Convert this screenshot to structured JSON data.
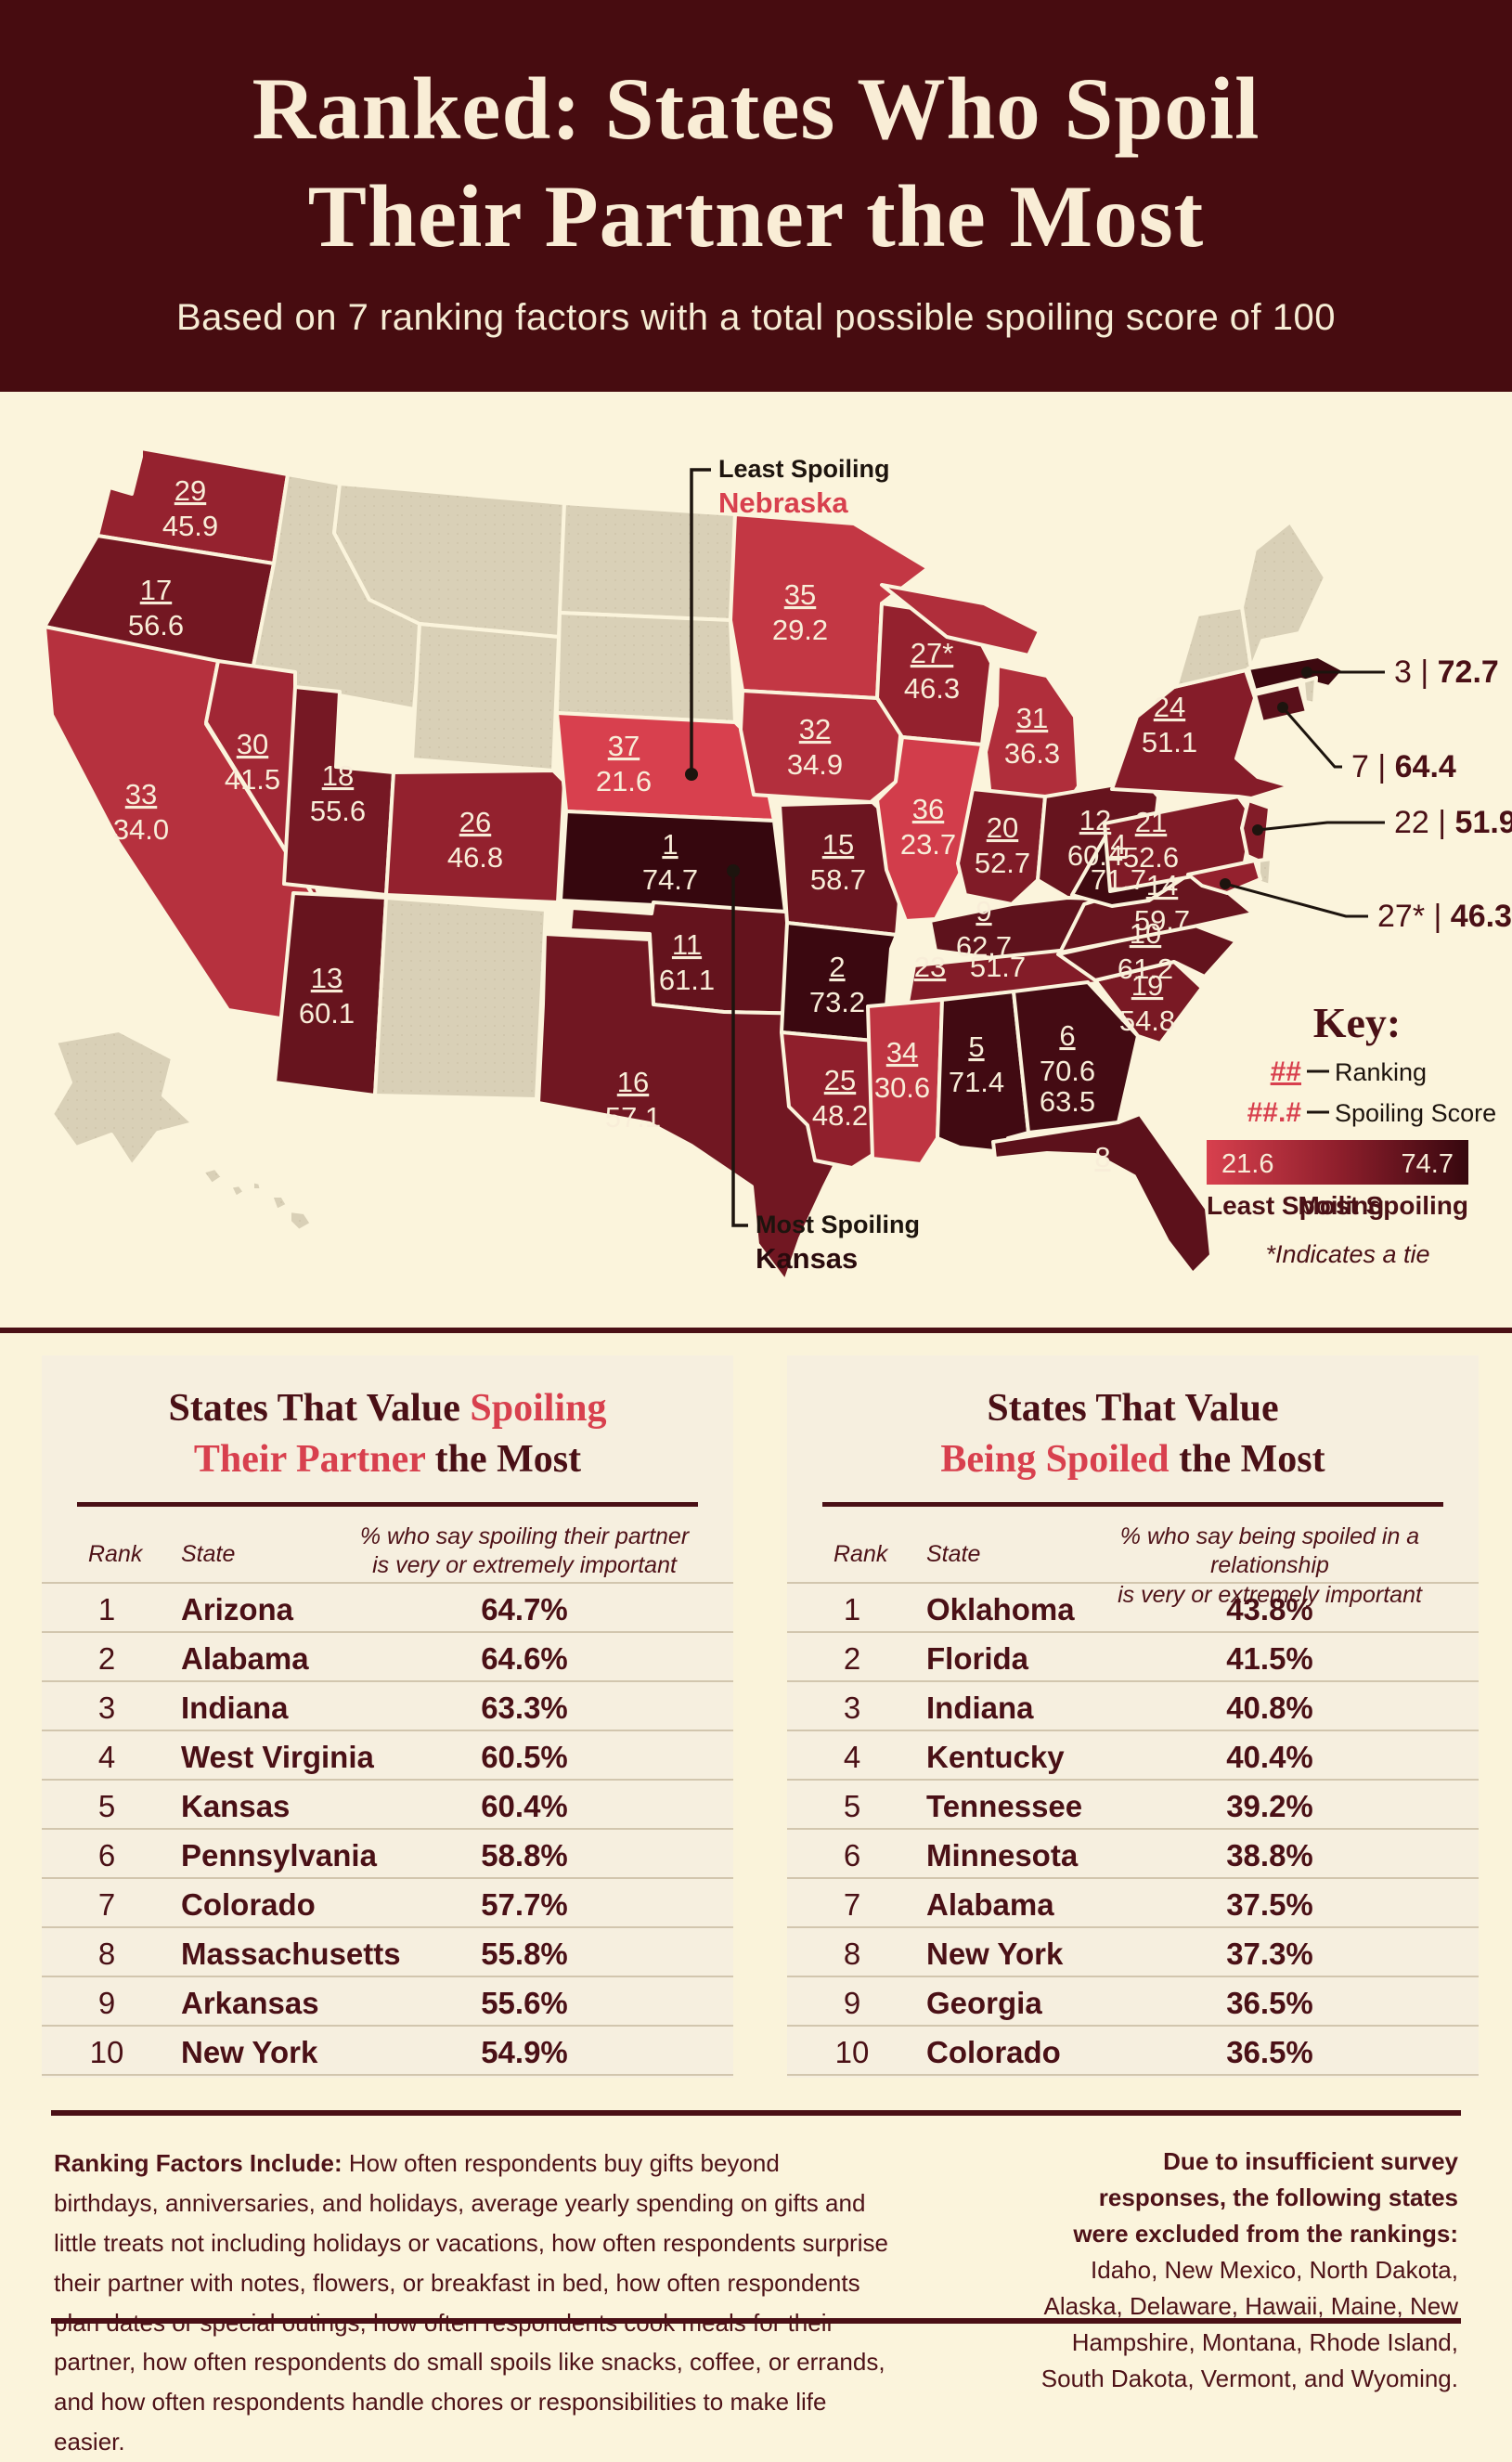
{
  "header": {
    "title_line1": "Ranked: States Who Spoil",
    "title_line2": "Their Partner the Most",
    "subtitle": "Based on 7 ranking factors with a total possible spoiling score of 100"
  },
  "colors": {
    "header_bg": "#470c10",
    "page_bg": "#fbf4dc",
    "panel_bg": "#f6efdf",
    "dark_maroon": "#4a1016",
    "accent_red": "#d8404e",
    "excluded_beige": "#d9d0b7",
    "label_cream": "#f8edd8",
    "scale_min_color": "#d8404e",
    "scale_mid_color": "#8f1f2c",
    "scale_max_color": "#36070e",
    "callout_line": "#1d140e"
  },
  "map": {
    "score_min": 21.6,
    "score_max": 74.7,
    "key": {
      "title": "Key:",
      "ranking_symbol": "##",
      "ranking_label": "Ranking",
      "score_symbol": "##.#",
      "score_label": "Spoiling Score",
      "legend_min": "21.6",
      "legend_max": "74.7",
      "legend_left": "Least Spoiling",
      "legend_right": "Most Spoiling",
      "tie_note": "*Indicates a tie"
    },
    "callouts": {
      "least": {
        "label": "Least Spoiling",
        "state": "Nebraska"
      },
      "most": {
        "label": "Most Spoiling",
        "state": "Kansas"
      },
      "east": [
        {
          "rank": "3",
          "score": "72.7"
        },
        {
          "rank": "7",
          "score": "64.4"
        },
        {
          "rank": "22",
          "score": "51.9"
        },
        {
          "rank": "27*",
          "score": "46.3"
        }
      ]
    },
    "states": [
      {
        "id": "WA",
        "name": "Washington",
        "rank": "29",
        "score": "45.9"
      },
      {
        "id": "OR",
        "name": "Oregon",
        "rank": "17",
        "score": "56.6"
      },
      {
        "id": "ID",
        "name": "Idaho",
        "excluded": true
      },
      {
        "id": "MT",
        "name": "Montana",
        "excluded": true
      },
      {
        "id": "WY",
        "name": "Wyoming",
        "excluded": true
      },
      {
        "id": "CA",
        "name": "California",
        "rank": "33",
        "score": "34.0"
      },
      {
        "id": "NV",
        "name": "Nevada",
        "rank": "30",
        "score": "41.5"
      },
      {
        "id": "UT",
        "name": "Utah",
        "rank": "18",
        "score": "55.6"
      },
      {
        "id": "CO",
        "name": "Colorado",
        "rank": "26",
        "score": "46.8"
      },
      {
        "id": "AZ",
        "name": "Arizona",
        "rank": "13",
        "score": "60.1"
      },
      {
        "id": "NM",
        "name": "New Mexico",
        "excluded": true
      },
      {
        "id": "ND",
        "name": "North Dakota",
        "excluded": true
      },
      {
        "id": "SD",
        "name": "South Dakota",
        "excluded": true
      },
      {
        "id": "NE",
        "name": "Nebraska",
        "rank": "37",
        "score": "21.6"
      },
      {
        "id": "KS",
        "name": "Kansas",
        "rank": "1",
        "score": "74.7"
      },
      {
        "id": "OK",
        "name": "Oklahoma",
        "rank": "11",
        "score": "61.1"
      },
      {
        "id": "TX",
        "name": "Texas",
        "rank": "16",
        "score": "57.1"
      },
      {
        "id": "MN",
        "name": "Minnesota",
        "rank": "35",
        "score": "29.2"
      },
      {
        "id": "IA",
        "name": "Iowa",
        "rank": "32",
        "score": "34.9"
      },
      {
        "id": "MO",
        "name": "Missouri",
        "rank": "15",
        "score": "58.7"
      },
      {
        "id": "AR",
        "name": "Arkansas",
        "rank": "2",
        "score": "73.2"
      },
      {
        "id": "LA",
        "name": "Louisiana",
        "rank": "25",
        "score": "48.2"
      },
      {
        "id": "WI",
        "name": "Wisconsin",
        "rank": "27*",
        "score": "46.3"
      },
      {
        "id": "IL",
        "name": "Illinois",
        "rank": "36",
        "score": "23.7"
      },
      {
        "id": "MI",
        "name": "Michigan",
        "rank": "31",
        "score": "36.3"
      },
      {
        "id": "IN",
        "name": "Indiana",
        "rank": "20",
        "score": "52.7"
      },
      {
        "id": "OH",
        "name": "Ohio",
        "rank": "12",
        "score": "60.4"
      },
      {
        "id": "KY",
        "name": "Kentucky",
        "rank": "9",
        "score": "62.7"
      },
      {
        "id": "TN",
        "name": "Tennessee",
        "rank": "23",
        "score": "51.7"
      },
      {
        "id": "MS",
        "name": "Mississippi",
        "rank": "34",
        "score": "30.6"
      },
      {
        "id": "AL",
        "name": "Alabama",
        "rank": "5",
        "score": "71.4"
      },
      {
        "id": "GA",
        "name": "Georgia",
        "rank": "6",
        "score": "70.6"
      },
      {
        "id": "FL",
        "name": "Florida",
        "rank": "8",
        "score": "63.5"
      },
      {
        "id": "SC",
        "name": "South Carolina",
        "rank": "19",
        "score": "54.8"
      },
      {
        "id": "NC",
        "name": "North Carolina",
        "rank": "10",
        "score": "61.2"
      },
      {
        "id": "VA",
        "name": "Virginia",
        "rank": "14",
        "score": "59.7"
      },
      {
        "id": "WV",
        "name": "West Virginia",
        "rank": "4",
        "score": "71.7"
      },
      {
        "id": "PA",
        "name": "Pennsylvania",
        "rank": "21",
        "score": "52.6"
      },
      {
        "id": "NY",
        "name": "New York",
        "rank": "24",
        "score": "51.1"
      },
      {
        "id": "VTNH",
        "name": "Vermont & New Hampshire",
        "excluded": true
      },
      {
        "id": "ME",
        "name": "Maine",
        "excluded": true
      },
      {
        "id": "MA",
        "name": "Massachusetts",
        "rank": "3",
        "score": "72.7"
      },
      {
        "id": "RI",
        "name": "Rhode Island",
        "excluded": true
      },
      {
        "id": "CT",
        "name": "Connecticut",
        "rank": "7",
        "score": "64.4"
      },
      {
        "id": "NJ",
        "name": "New Jersey",
        "rank": "22",
        "score": "51.9"
      },
      {
        "id": "DE",
        "name": "Delaware",
        "excluded": true
      },
      {
        "id": "MD",
        "name": "Maryland",
        "rank": "27*",
        "score": "46.3"
      },
      {
        "id": "AK",
        "name": "Alaska",
        "excluded": true
      },
      {
        "id": "HI",
        "name": "Hawaii",
        "excluded": true
      }
    ]
  },
  "chart_data": {
    "type": "heatmap",
    "title": "Ranked: States Who Spoil Their Partner the Most",
    "subtitle": "Based on 7 ranking factors with a total possible spoiling score of 100",
    "value_range": [
      21.6,
      74.7
    ],
    "legend_position": "right",
    "series": [
      {
        "state": "Kansas",
        "rank": 1,
        "score": 74.7
      },
      {
        "state": "Arkansas",
        "rank": 2,
        "score": 73.2
      },
      {
        "state": "Massachusetts",
        "rank": 3,
        "score": 72.7
      },
      {
        "state": "West Virginia",
        "rank": 4,
        "score": 71.7
      },
      {
        "state": "Alabama",
        "rank": 5,
        "score": 71.4
      },
      {
        "state": "Georgia",
        "rank": 6,
        "score": 70.6
      },
      {
        "state": "Connecticut",
        "rank": 7,
        "score": 64.4
      },
      {
        "state": "Florida",
        "rank": 8,
        "score": 63.5
      },
      {
        "state": "Kentucky",
        "rank": 9,
        "score": 62.7
      },
      {
        "state": "North Carolina",
        "rank": 10,
        "score": 61.2
      },
      {
        "state": "Oklahoma",
        "rank": 11,
        "score": 61.1
      },
      {
        "state": "Ohio",
        "rank": 12,
        "score": 60.4
      },
      {
        "state": "Arizona",
        "rank": 13,
        "score": 60.1
      },
      {
        "state": "Virginia",
        "rank": 14,
        "score": 59.7
      },
      {
        "state": "Missouri",
        "rank": 15,
        "score": 58.7
      },
      {
        "state": "Texas",
        "rank": 16,
        "score": 57.1
      },
      {
        "state": "Oregon",
        "rank": 17,
        "score": 56.6
      },
      {
        "state": "Utah",
        "rank": 18,
        "score": 55.6
      },
      {
        "state": "South Carolina",
        "rank": 19,
        "score": 54.8
      },
      {
        "state": "Indiana",
        "rank": 20,
        "score": 52.7
      },
      {
        "state": "Pennsylvania",
        "rank": 21,
        "score": 52.6
      },
      {
        "state": "New Jersey",
        "rank": 22,
        "score": 51.9
      },
      {
        "state": "Tennessee",
        "rank": 23,
        "score": 51.7
      },
      {
        "state": "New York",
        "rank": 24,
        "score": 51.1
      },
      {
        "state": "Louisiana",
        "rank": 25,
        "score": 48.2
      },
      {
        "state": "Colorado",
        "rank": 26,
        "score": 46.8
      },
      {
        "state": "Wisconsin",
        "rank": 27,
        "score": 46.3,
        "tie": true
      },
      {
        "state": "Maryland",
        "rank": 27,
        "score": 46.3,
        "tie": true
      },
      {
        "state": "Washington",
        "rank": 29,
        "score": 45.9
      },
      {
        "state": "Nevada",
        "rank": 30,
        "score": 41.5
      },
      {
        "state": "Michigan",
        "rank": 31,
        "score": 36.3
      },
      {
        "state": "Iowa",
        "rank": 32,
        "score": 34.9
      },
      {
        "state": "California",
        "rank": 33,
        "score": 34.0
      },
      {
        "state": "Mississippi",
        "rank": 34,
        "score": 30.6
      },
      {
        "state": "Minnesota",
        "rank": 35,
        "score": 29.2
      },
      {
        "state": "Illinois",
        "rank": 36,
        "score": 23.7
      },
      {
        "state": "Nebraska",
        "rank": 37,
        "score": 21.6
      }
    ]
  },
  "tables": [
    {
      "title_lines": [
        [
          {
            "t": "States That Value ",
            "red": false
          },
          {
            "t": "Spoiling",
            "red": true
          }
        ],
        [
          {
            "t": "Their Partner",
            "red": true
          },
          {
            "t": " the Most",
            "red": false
          }
        ]
      ],
      "col_rank": "Rank",
      "col_state": "State",
      "col_pct": [
        "% who say spoiling their partner",
        "is very or extremely important"
      ],
      "rows": [
        [
          "1",
          "Arizona",
          "64.7%"
        ],
        [
          "2",
          "Alabama",
          "64.6%"
        ],
        [
          "3",
          "Indiana",
          "63.3%"
        ],
        [
          "4",
          "West Virginia",
          "60.5%"
        ],
        [
          "5",
          "Kansas",
          "60.4%"
        ],
        [
          "6",
          "Pennsylvania",
          "58.8%"
        ],
        [
          "7",
          "Colorado",
          "57.7%"
        ],
        [
          "8",
          "Massachusetts",
          "55.8%"
        ],
        [
          "9",
          "Arkansas",
          "55.6%"
        ],
        [
          "10",
          "New York",
          "54.9%"
        ]
      ]
    },
    {
      "title_lines": [
        [
          {
            "t": "States That Value",
            "red": false
          }
        ],
        [
          {
            "t": "Being Spoiled",
            "red": true
          },
          {
            "t": " the Most",
            "red": false
          }
        ]
      ],
      "col_rank": "Rank",
      "col_state": "State",
      "col_pct": [
        "% who say being spoiled in a relationship",
        "is very or extremely important"
      ],
      "rows": [
        [
          "1",
          "Oklahoma",
          "43.8%"
        ],
        [
          "2",
          "Florida",
          "41.5%"
        ],
        [
          "3",
          "Indiana",
          "40.8%"
        ],
        [
          "4",
          "Kentucky",
          "40.4%"
        ],
        [
          "5",
          "Tennessee",
          "39.2%"
        ],
        [
          "6",
          "Minnesota",
          "38.8%"
        ],
        [
          "7",
          "Alabama",
          "37.5%"
        ],
        [
          "8",
          "New York",
          "37.3%"
        ],
        [
          "9",
          "Georgia",
          "36.5%"
        ],
        [
          "10",
          "Colorado",
          "36.5%"
        ]
      ]
    }
  ],
  "footer": {
    "left_bold": "Ranking Factors Include:",
    "left_text": " How often respondents buy gifts beyond birthdays, anniversaries, and holidays, average yearly spending on gifts and little treats not including holidays or vacations, how often respondents surprise their partner with notes, flowers, or breakfast in bed, how often respondents plan dates or special outings, how often respondents cook meals for their partner, how often respondents do small spoils like snacks, coffee, or errands, and how often respondents handle chores or responsibilities to make life easier.",
    "right_bold": "Due to insufficient survey responses, the following states were excluded from the rankings:",
    "right_text": " Idaho, New Mexico, North Dakota, Alaska, Delaware, Hawaii, Maine, New Hampshire, Montana, Rhode Island, South Dakota, Vermont, and Wyoming."
  }
}
